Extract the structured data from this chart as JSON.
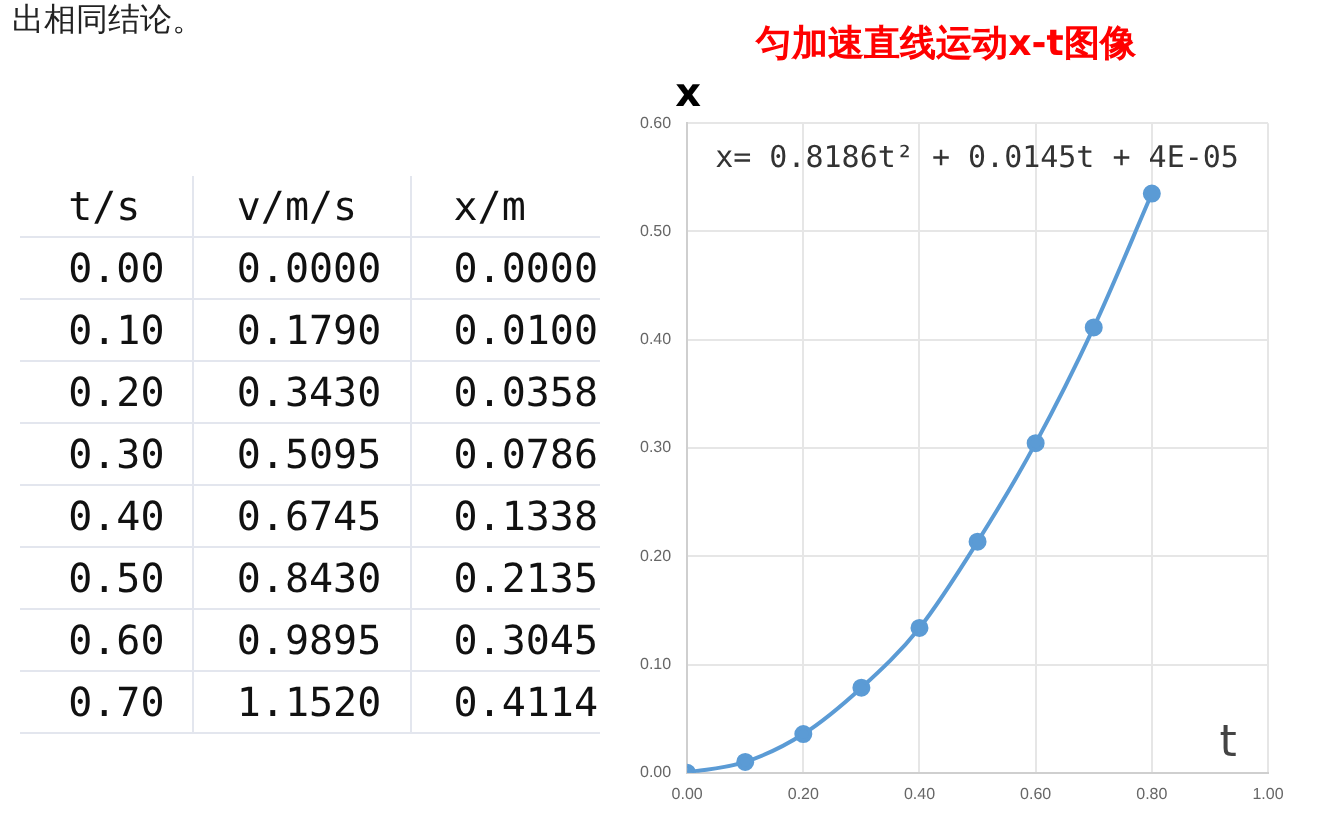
{
  "chart_data": [
    {
      "type": "other",
      "annotations": [
        "出相同结论。",
        "  t/s    v/m/s    x/m",
        "  0.00   0.0000   0.0000",
        "  0.10   0.1790   0.0100",
        "  0.20   0.3430   0.0358",
        "  0.30   0.5095   0.0786",
        "  0.40   0.6745   0.1338",
        "  0.50   0.8430   0.2135",
        "  0.60   0.9895   0.3045",
        "  0.70   1.1520   0.4114"
      ]
    },
    {
      "type": "line",
      "title": "匀加速直线运动x-t图像",
      "xlabel": "t",
      "ylabel": "x",
      "annotations": [
        "x= 0.8186t² + 0.0145t + 4E-05"
      ],
      "x": [
        0,
        0.1,
        0.2,
        0.3,
        0.4,
        0.5,
        0.6,
        0.7,
        0.8
      ],
      "series": [
        {
          "color": "#5b9bd5",
          "values": [
            0,
            0.01,
            0.0358,
            0.0786,
            0.1338,
            0.2135,
            0.3045,
            0.4114,
            0.535
          ]
        }
      ],
      "xlim": [
        0,
        1
      ],
      "xticks": [
        {
          "value": 0,
          "label": "0.00"
        },
        {
          "value": 0.2,
          "label": "0.20"
        },
        {
          "value": 0.4,
          "label": "0.40"
        },
        {
          "value": 0.6,
          "label": "0.60"
        },
        {
          "value": 0.8,
          "label": "0.80"
        },
        {
          "value": 1,
          "label": "1.00"
        }
      ],
      "ylim": [
        0,
        0.6
      ],
      "yticks": [
        {
          "value": 0,
          "label": "0.00"
        },
        {
          "value": 0.1,
          "label": "0.10"
        },
        {
          "value": 0.2,
          "label": "0.20"
        },
        {
          "value": 0.3,
          "label": "0.30"
        },
        {
          "value": 0.4,
          "label": "0.40"
        },
        {
          "value": 0.5,
          "label": "0.50"
        },
        {
          "value": 0.6,
          "label": "0.60"
        }
      ],
      "grid": true,
      "marker": "circle",
      "line_style": "solid",
      "legend": false
    }
  ]
}
